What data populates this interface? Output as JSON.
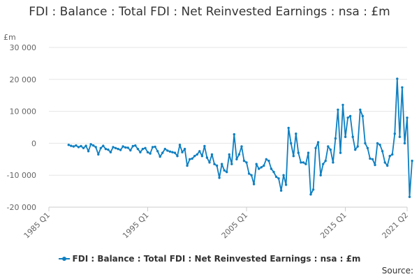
{
  "chart_data": {
    "type": "line",
    "title": "FDI : Balance : Total FDI : Net Reinvested Earnings : nsa : £m",
    "ylabel": "£m",
    "xlabel": "",
    "ylim": [
      -20000,
      30000
    ],
    "yticks": [
      30000,
      20000,
      10000,
      0,
      -10000,
      -20000
    ],
    "ytick_labels": [
      "30 000",
      "20 000",
      "10 000",
      "0",
      "-10 000",
      "-20 000"
    ],
    "xlim_quarter_index": [
      0,
      145
    ],
    "xticks": [
      {
        "label": "1985 Q1",
        "index": 0
      },
      {
        "label": "1995 Q1",
        "index": 40
      },
      {
        "label": "2005 Q1",
        "index": 80
      },
      {
        "label": "2015 Q1",
        "index": 120
      },
      {
        "label": "2021 Q2",
        "index": 145
      }
    ],
    "grid": true,
    "legend_position": "bottom",
    "series": [
      {
        "name": "FDI : Balance : Total FDI : Net Reinvested Earnings : nsa : £m",
        "color": "#0e7fc1",
        "start_quarter_index": 8,
        "values": [
          -500,
          -800,
          -1000,
          -700,
          -1200,
          -900,
          -1500,
          -800,
          -2500,
          -300,
          -700,
          -1200,
          -3500,
          -1500,
          -800,
          -1800,
          -2000,
          -2800,
          -1200,
          -1500,
          -1800,
          -2100,
          -1000,
          -1300,
          -1400,
          -2200,
          -900,
          -700,
          -1800,
          -2800,
          -1800,
          -1500,
          -2800,
          -3200,
          -1200,
          -1100,
          -2500,
          -4200,
          -3000,
          -1800,
          -2300,
          -2600,
          -2800,
          -3000,
          -4000,
          -500,
          -2800,
          -1800,
          -7000,
          -5000,
          -4800,
          -4000,
          -3500,
          -2500,
          -4000,
          -900,
          -4500,
          -6000,
          -3500,
          -6500,
          -7000,
          -10800,
          -6500,
          -8500,
          -9000,
          -3500,
          -6500,
          2800,
          -5000,
          -3500,
          -1000,
          -5500,
          -6000,
          -9500,
          -10000,
          -12800,
          -6500,
          -8000,
          -7500,
          -7000,
          -5000,
          -5500,
          -8000,
          -9000,
          -10500,
          -11000,
          -14800,
          -10000,
          -13000,
          4800,
          0,
          -4000,
          3000,
          -3000,
          -6000,
          -6000,
          -6500,
          -3000,
          -16000,
          -14500,
          -1500,
          300,
          -10000,
          -6500,
          -5500,
          -1000,
          -2000,
          -6000,
          1500,
          10500,
          -3000,
          12000,
          2000,
          8000,
          8500,
          2000,
          -2000,
          -1000,
          10500,
          8500,
          0,
          -1500,
          -4800,
          -5000,
          -6800,
          0,
          -500,
          -2500,
          -6000,
          -7000,
          -4000,
          -3500,
          3000,
          20200,
          2000,
          17500,
          0,
          8000,
          -16800,
          -5500
        ]
      }
    ],
    "legend": [
      "FDI : Balance : Total FDI : Net Reinvested Earnings : nsa : £m"
    ],
    "source_label": "Source:"
  }
}
